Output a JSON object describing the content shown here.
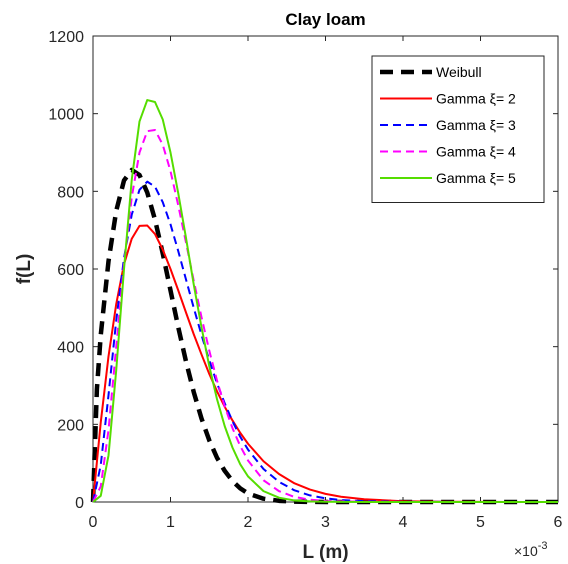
{
  "chart_data": {
    "type": "line",
    "title": "Clay loam",
    "xlabel": "L (m)",
    "ylabel": "f(L)",
    "x_exponent_label": "×10",
    "x_exponent_power": "-3",
    "xlim": [
      0,
      0.006
    ],
    "ylim": [
      0,
      1200
    ],
    "x_ticks": [
      0,
      0.001,
      0.002,
      0.003,
      0.004,
      0.005,
      0.006
    ],
    "x_tick_labels": [
      "0",
      "1",
      "2",
      "3",
      "4",
      "5",
      "6"
    ],
    "y_ticks": [
      0,
      200,
      400,
      600,
      800,
      1000,
      1200
    ],
    "y_tick_labels": [
      "0",
      "200",
      "400",
      "600",
      "800",
      "1000",
      "1200"
    ],
    "grid": false,
    "legend_position": "top-right",
    "series": [
      {
        "name": "Weibull",
        "legend_label": "Weibull",
        "color": "#000000",
        "dash": "dash-thick",
        "x": [
          0,
          5e-05,
          0.0001,
          0.0002,
          0.0003,
          0.0004,
          0.0005,
          0.0006,
          0.0007,
          0.0008,
          0.0009,
          0.001,
          0.0011,
          0.0012,
          0.0013,
          0.0014,
          0.0015,
          0.0016,
          0.0017,
          0.0018,
          0.0019,
          0.002,
          0.0022,
          0.0024,
          0.0026,
          0.0028,
          0.003,
          0.0035,
          0.004,
          0.005,
          0.006
        ],
        "y": [
          0,
          290,
          430,
          620,
          750,
          828,
          855,
          842,
          797,
          727,
          640,
          545,
          450,
          362,
          283,
          215,
          159,
          114,
          80,
          54,
          35,
          22,
          8.5,
          3,
          1,
          0.3,
          0.1,
          0,
          0,
          0,
          0
        ]
      },
      {
        "name": "Gamma ξ= 2",
        "legend_label": "Gamma  ξ= 2",
        "color": "#ff0000",
        "dash": "solid",
        "x": [
          0,
          0.0001,
          0.0002,
          0.0003,
          0.0004,
          0.0005,
          0.0006,
          0.0007,
          0.0008,
          0.0009,
          0.001,
          0.0011,
          0.0012,
          0.0013,
          0.0014,
          0.0015,
          0.0016,
          0.0017,
          0.0018,
          0.0019,
          0.002,
          0.0022,
          0.0024,
          0.0026,
          0.0028,
          0.003,
          0.0032,
          0.0035,
          0.004,
          0.0045,
          0.005,
          0.006
        ],
        "y": [
          0,
          205,
          375,
          510,
          612,
          678,
          711,
          712,
          690,
          650,
          600,
          545,
          488,
          432,
          380,
          330,
          285,
          245,
          210,
          178,
          150,
          105,
          72,
          48,
          32,
          21,
          13.5,
          7,
          2,
          0.6,
          0.2,
          0
        ]
      },
      {
        "name": "Gamma ξ= 3",
        "legend_label": "Gamma  ξ= 3",
        "color": "#0000ff",
        "dash": "dash",
        "x": [
          0,
          0.0001,
          0.0002,
          0.0003,
          0.0004,
          0.0005,
          0.0006,
          0.0007,
          0.0008,
          0.0009,
          0.001,
          0.0011,
          0.0012,
          0.0013,
          0.0014,
          0.0015,
          0.0016,
          0.0017,
          0.0018,
          0.0019,
          0.002,
          0.0022,
          0.0024,
          0.0026,
          0.0028,
          0.003,
          0.0032,
          0.0035,
          0.004,
          0.005,
          0.006
        ],
        "y": [
          0,
          95,
          275,
          468,
          628,
          740,
          804,
          825,
          812,
          772,
          715,
          646,
          573,
          500,
          430,
          365,
          306,
          254,
          208,
          168,
          135,
          85,
          52,
          30,
          17,
          9.5,
          5,
          2,
          0.4,
          0,
          0
        ]
      },
      {
        "name": "Gamma ξ= 4",
        "legend_label": "Gamma  ξ= 4",
        "color": "#ff00ff",
        "dash": "dash",
        "x": [
          0,
          0.0001,
          0.0002,
          0.0003,
          0.0004,
          0.0005,
          0.0006,
          0.0007,
          0.0008,
          0.0009,
          0.001,
          0.0011,
          0.0012,
          0.0013,
          0.0014,
          0.0015,
          0.0016,
          0.0017,
          0.0018,
          0.0019,
          0.002,
          0.0022,
          0.0024,
          0.0026,
          0.0028,
          0.003,
          0.0035,
          0.004,
          0.005,
          0.006
        ],
        "y": [
          0,
          40,
          185,
          400,
          612,
          785,
          900,
          955,
          958,
          920,
          852,
          764,
          668,
          570,
          476,
          390,
          313,
          246,
          190,
          144,
          107,
          56,
          28,
          13,
          6,
          2.7,
          0.5,
          0.1,
          0,
          0
        ]
      },
      {
        "name": "Gamma ξ= 5",
        "legend_label": "Gamma  ξ= 5",
        "color": "#55dd00",
        "dash": "solid",
        "x": [
          0,
          0.0001,
          0.0002,
          0.0003,
          0.0004,
          0.0005,
          0.0006,
          0.0007,
          0.0008,
          0.0009,
          0.001,
          0.0011,
          0.0012,
          0.0013,
          0.0014,
          0.0015,
          0.0016,
          0.0017,
          0.0018,
          0.0019,
          0.002,
          0.0022,
          0.0024,
          0.0026,
          0.0028,
          0.003,
          0.0035,
          0.004,
          0.005,
          0.006
        ],
        "y": [
          0,
          16,
          120,
          340,
          600,
          830,
          980,
          1035,
          1030,
          985,
          900,
          795,
          680,
          560,
          450,
          350,
          265,
          195,
          140,
          97,
          66,
          28,
          11,
          4,
          1.5,
          0.5,
          0.1,
          0,
          0,
          0
        ]
      }
    ]
  }
}
